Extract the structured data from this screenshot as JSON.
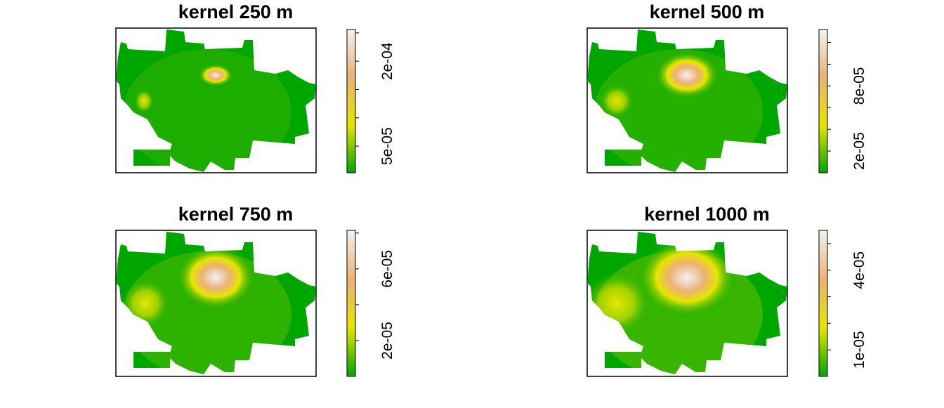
{
  "chart_data": [
    {
      "type": "raster",
      "title": "kernel 250 m",
      "zlim": [
        3e-06,
        0.000256
      ],
      "zticks": [
        {
          "value": 5e-05,
          "label": "5e-05"
        },
        {
          "value": 0.0002,
          "label": "2e-04"
        }
      ],
      "zticks_minor": [
        0.0001,
        0.00015,
        0.00025
      ],
      "colors": [
        "#00A600",
        "#E6E600",
        "#ECB176",
        "#F2F2F2"
      ]
    },
    {
      "type": "raster",
      "title": "kernel 500 m",
      "zlim": [
        0,
        0.000132
      ],
      "zticks": [
        {
          "value": 2e-05,
          "label": "2e-05"
        },
        {
          "value": 8e-05,
          "label": "8e-05"
        }
      ],
      "zticks_minor": [
        4e-05,
        6e-05,
        0.0001,
        0.00012
      ],
      "colors": [
        "#00A600",
        "#E6E600",
        "#ECB176",
        "#F2F2F2"
      ]
    },
    {
      "type": "raster",
      "title": "kernel 750 m",
      "zlim": [
        0,
        8.15e-05
      ],
      "zticks": [
        {
          "value": 2e-05,
          "label": "2e-05"
        },
        {
          "value": 6e-05,
          "label": "6e-05"
        }
      ],
      "zticks_minor": [
        4e-05,
        8e-05
      ],
      "colors": [
        "#00A600",
        "#E6E600",
        "#ECB176",
        "#F2F2F2"
      ]
    },
    {
      "type": "raster",
      "title": "kernel 1000 m",
      "zlim": [
        0,
        5.5e-05
      ],
      "zticks": [
        {
          "value": 1e-05,
          "label": "1e-05"
        },
        {
          "value": 4e-05,
          "label": "4e-05"
        }
      ],
      "zticks_minor": [
        2e-05,
        3e-05,
        5e-05
      ],
      "colors": [
        "#00A600",
        "#E6E600",
        "#ECB176",
        "#F2F2F2"
      ]
    }
  ]
}
